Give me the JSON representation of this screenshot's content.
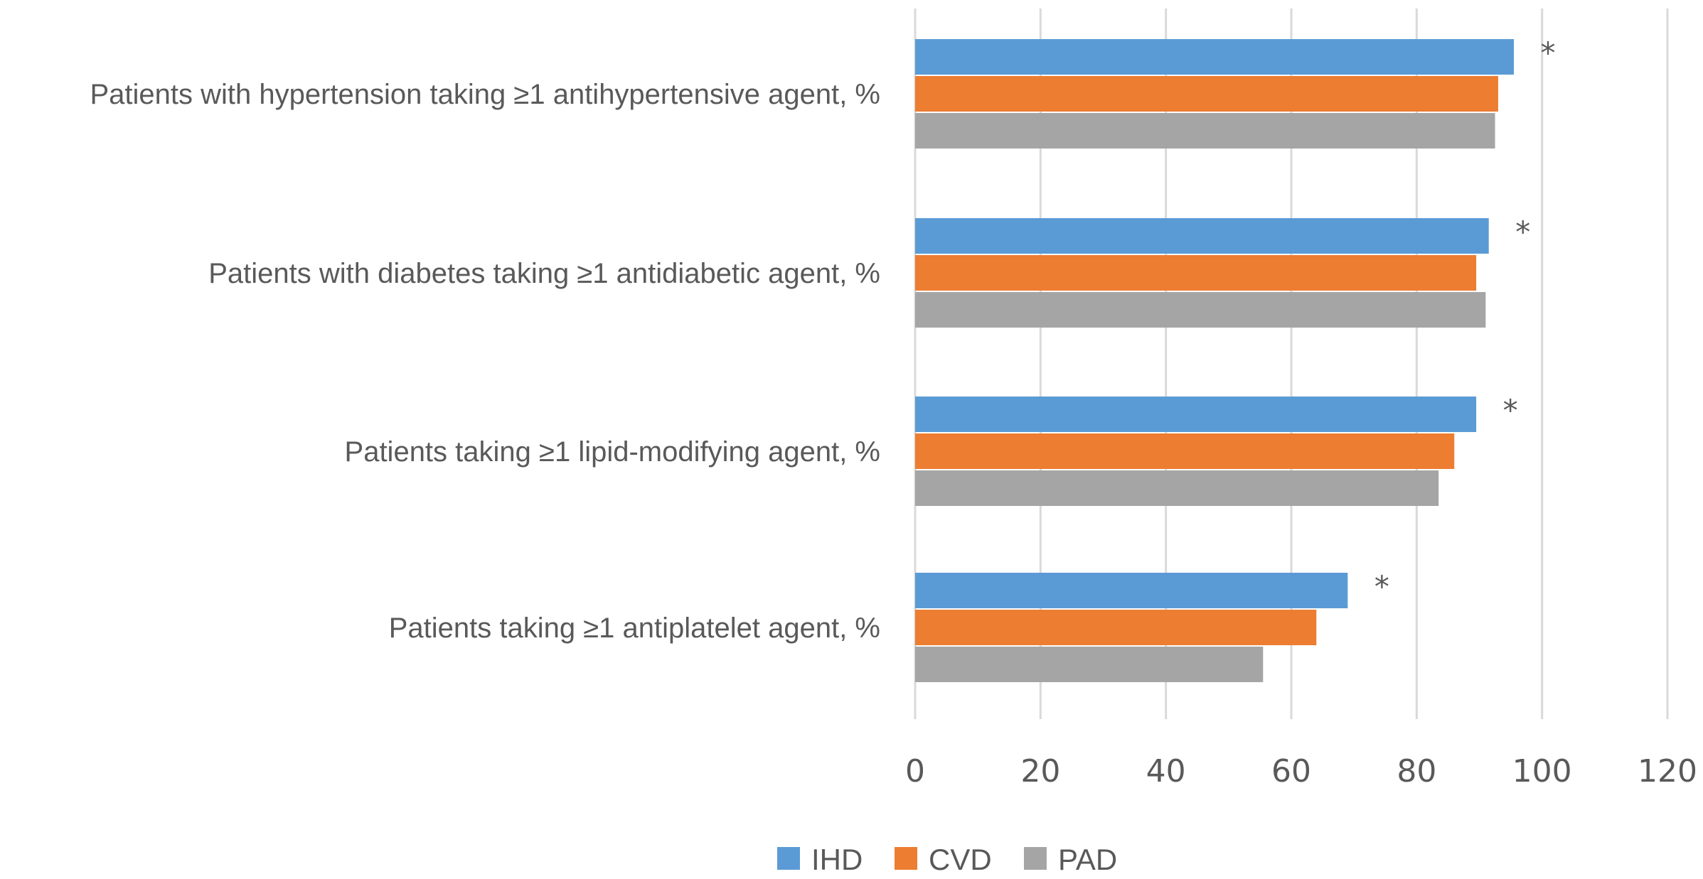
{
  "chart_data": {
    "type": "bar",
    "orientation": "horizontal",
    "categories": [
      "Patients with hypertension taking ≥1 antihypertensive agent, %",
      "Patients with diabetes taking ≥1 antidiabetic agent, %",
      "Patients taking ≥1 lipid-modifying agent, %",
      "Patients taking ≥1 antiplatelet agent, %"
    ],
    "series": [
      {
        "name": "IHD",
        "color": "#5b9bd5",
        "values": [
          95.5,
          91.5,
          89.5,
          69
        ]
      },
      {
        "name": "CVD",
        "color": "#ed7d31",
        "values": [
          93,
          89.5,
          86,
          64
        ]
      },
      {
        "name": "PAD",
        "color": "#a5a5a5",
        "values": [
          92.5,
          91,
          83.5,
          55.5
        ]
      }
    ],
    "annotations": [
      "*",
      "*",
      "*",
      "*"
    ],
    "xticks": [
      "0",
      "20",
      "40",
      "60",
      "80",
      "100",
      "120"
    ],
    "xlim": [
      0,
      120
    ],
    "grid": "vertical",
    "legend": "bottom",
    "title": "",
    "xlabel": "",
    "ylabel": ""
  }
}
